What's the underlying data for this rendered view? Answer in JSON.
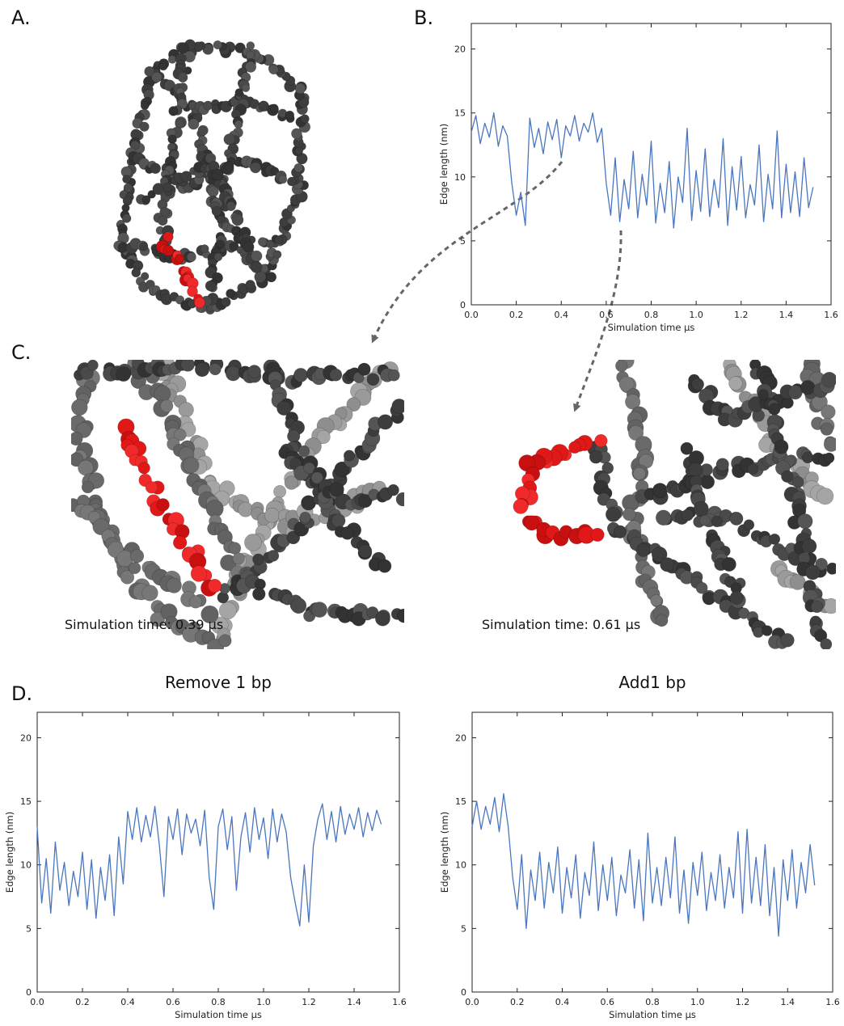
{
  "panels": {
    "a": "A.",
    "b": "B.",
    "c": "C.",
    "d": "D."
  },
  "captions": [
    "Simulation time: 0.39 μs",
    "Simulation time: 0.61 μs"
  ],
  "chart_data": [
    {
      "type": "line",
      "color": "#4a76bf",
      "xlabel": "Simulation time μs",
      "ylabel": "Edge length (nm)",
      "xlim": [
        0,
        1.6
      ],
      "ylim": [
        0,
        22
      ],
      "xticks": [
        {
          "value": 0,
          "label": "0.0"
        },
        0.2,
        0.4,
        0.6,
        0.8,
        {
          "value": 1,
          "label": "1.0"
        },
        1.2,
        1.4,
        1.6
      ],
      "yticks": [
        0,
        5,
        10,
        15,
        20
      ],
      "x": [
        0,
        0.02,
        0.04,
        0.06,
        0.08,
        0.1,
        0.12,
        0.14,
        0.16,
        0.18,
        0.2,
        0.22,
        0.24,
        0.26,
        0.28,
        0.3,
        0.32,
        0.34,
        0.36,
        0.38,
        0.4,
        0.42,
        0.44,
        0.46,
        0.48,
        0.5,
        0.52,
        0.54,
        0.56,
        0.58,
        0.6,
        0.62,
        0.64,
        0.66,
        0.68,
        0.7,
        0.72,
        0.74,
        0.76,
        0.78,
        0.8,
        0.82,
        0.84,
        0.86,
        0.88,
        0.9,
        0.92,
        0.94,
        0.96,
        0.98,
        1,
        1.02,
        1.04,
        1.06,
        1.08,
        1.1,
        1.12,
        1.14,
        1.16,
        1.18,
        1.2,
        1.22,
        1.24,
        1.26,
        1.28,
        1.3,
        1.32,
        1.34,
        1.36,
        1.38,
        1.4,
        1.42,
        1.44,
        1.46,
        1.48,
        1.5,
        1.52
      ],
      "values": [
        13.5,
        14.8,
        12.6,
        14.2,
        13.1,
        15.0,
        12.4,
        14.0,
        13.2,
        9.5,
        7.0,
        8.8,
        6.2,
        14.6,
        12.3,
        13.8,
        11.8,
        14.3,
        12.9,
        14.5,
        11.5,
        14.0,
        13.2,
        14.8,
        12.8,
        14.2,
        13.5,
        15.0,
        12.7,
        13.8,
        9.5,
        7.0,
        11.5,
        6.5,
        9.8,
        7.5,
        12.0,
        6.8,
        10.2,
        7.8,
        12.8,
        6.4,
        9.5,
        7.2,
        11.2,
        6.0,
        10.0,
        8.0,
        13.8,
        6.6,
        10.5,
        7.3,
        12.2,
        6.9,
        9.8,
        7.6,
        13.0,
        6.2,
        10.8,
        7.4,
        11.6,
        6.8,
        9.4,
        7.8,
        12.5,
        6.5,
        10.2,
        7.5,
        13.6,
        6.8,
        11.0,
        7.2,
        10.4,
        6.9,
        11.5,
        7.6,
        9.2
      ]
    },
    {
      "type": "line",
      "title": "Remove 1 bp",
      "color": "#4a76bf",
      "xlabel": "Simulation time μs",
      "ylabel": "Edge length (nm)",
      "xlim": [
        0,
        1.6
      ],
      "ylim": [
        0,
        22
      ],
      "xticks": [
        {
          "value": 0,
          "label": "0.0"
        },
        0.2,
        0.4,
        0.6,
        0.8,
        {
          "value": 1,
          "label": "1.0"
        },
        1.2,
        1.4,
        1.6
      ],
      "yticks": [
        0,
        5,
        10,
        15,
        20
      ],
      "x": [
        0,
        0.02,
        0.04,
        0.06,
        0.08,
        0.1,
        0.12,
        0.14,
        0.16,
        0.18,
        0.2,
        0.22,
        0.24,
        0.26,
        0.28,
        0.3,
        0.32,
        0.34,
        0.36,
        0.38,
        0.4,
        0.42,
        0.44,
        0.46,
        0.48,
        0.5,
        0.52,
        0.54,
        0.56,
        0.58,
        0.6,
        0.62,
        0.64,
        0.66,
        0.68,
        0.7,
        0.72,
        0.74,
        0.76,
        0.78,
        0.8,
        0.82,
        0.84,
        0.86,
        0.88,
        0.9,
        0.92,
        0.94,
        0.96,
        0.98,
        1,
        1.02,
        1.04,
        1.06,
        1.08,
        1.1,
        1.12,
        1.14,
        1.16,
        1.18,
        1.2,
        1.22,
        1.24,
        1.26,
        1.28,
        1.3,
        1.32,
        1.34,
        1.36,
        1.38,
        1.4,
        1.42,
        1.44,
        1.46,
        1.48,
        1.5,
        1.52
      ],
      "values": [
        13.0,
        7.0,
        10.5,
        6.2,
        11.8,
        8.0,
        10.2,
        6.8,
        9.5,
        7.5,
        11.0,
        6.5,
        10.4,
        5.8,
        9.8,
        7.2,
        10.8,
        6.0,
        12.2,
        8.5,
        14.2,
        12.0,
        14.5,
        11.8,
        13.9,
        12.2,
        14.6,
        11.5,
        7.5,
        13.8,
        12.0,
        14.4,
        10.8,
        14.0,
        12.5,
        13.6,
        11.5,
        14.3,
        9.0,
        6.5,
        13.0,
        14.4,
        11.2,
        13.8,
        8.0,
        12.2,
        14.1,
        11.0,
        14.5,
        12.0,
        13.7,
        10.5,
        14.4,
        11.8,
        14.0,
        12.6,
        9.0,
        7.0,
        5.2,
        10.0,
        5.5,
        11.5,
        13.6,
        14.8,
        12.0,
        14.2,
        11.8,
        14.6,
        12.4,
        14.0,
        12.8,
        14.5,
        12.2,
        14.1,
        12.7,
        14.3,
        13.2
      ]
    },
    {
      "type": "line",
      "title": "Add1 bp",
      "color": "#4a76bf",
      "xlabel": "Simulation time μs",
      "ylabel": "Edge length (nm)",
      "xlim": [
        0,
        1.6
      ],
      "ylim": [
        0,
        22
      ],
      "xticks": [
        {
          "value": 0,
          "label": "0.0"
        },
        0.2,
        0.4,
        0.6,
        0.8,
        {
          "value": 1,
          "label": "1.0"
        },
        1.2,
        1.4,
        1.6
      ],
      "yticks": [
        0,
        5,
        10,
        15,
        20
      ],
      "x": [
        0,
        0.02,
        0.04,
        0.06,
        0.08,
        0.1,
        0.12,
        0.14,
        0.16,
        0.18,
        0.2,
        0.22,
        0.24,
        0.26,
        0.28,
        0.3,
        0.32,
        0.34,
        0.36,
        0.38,
        0.4,
        0.42,
        0.44,
        0.46,
        0.48,
        0.5,
        0.52,
        0.54,
        0.56,
        0.58,
        0.6,
        0.62,
        0.64,
        0.66,
        0.68,
        0.7,
        0.72,
        0.74,
        0.76,
        0.78,
        0.8,
        0.82,
        0.84,
        0.86,
        0.88,
        0.9,
        0.92,
        0.94,
        0.96,
        0.98,
        1,
        1.02,
        1.04,
        1.06,
        1.08,
        1.1,
        1.12,
        1.14,
        1.16,
        1.18,
        1.2,
        1.22,
        1.24,
        1.26,
        1.28,
        1.3,
        1.32,
        1.34,
        1.36,
        1.38,
        1.4,
        1.42,
        1.44,
        1.46,
        1.48,
        1.5,
        1.52
      ],
      "values": [
        13.0,
        15.0,
        12.8,
        14.6,
        13.2,
        15.3,
        12.6,
        15.6,
        13.0,
        9.0,
        6.5,
        10.8,
        5.0,
        9.6,
        7.2,
        11.0,
        6.6,
        10.2,
        7.8,
        11.4,
        6.2,
        9.8,
        7.4,
        10.8,
        5.8,
        9.4,
        7.6,
        11.8,
        6.4,
        10.0,
        7.2,
        10.6,
        6.0,
        9.2,
        7.8,
        11.2,
        6.6,
        10.4,
        5.6,
        12.5,
        7.0,
        9.8,
        6.8,
        10.6,
        7.4,
        12.2,
        6.2,
        9.6,
        5.4,
        10.2,
        7.6,
        11.0,
        6.4,
        9.4,
        7.2,
        10.8,
        6.6,
        9.8,
        7.4,
        12.6,
        6.2,
        12.8,
        7.0,
        10.6,
        6.8,
        11.6,
        6.0,
        9.8,
        4.4,
        10.4,
        7.2,
        11.2,
        6.6,
        10.2,
        7.8,
        11.6,
        8.4
      ]
    }
  ]
}
